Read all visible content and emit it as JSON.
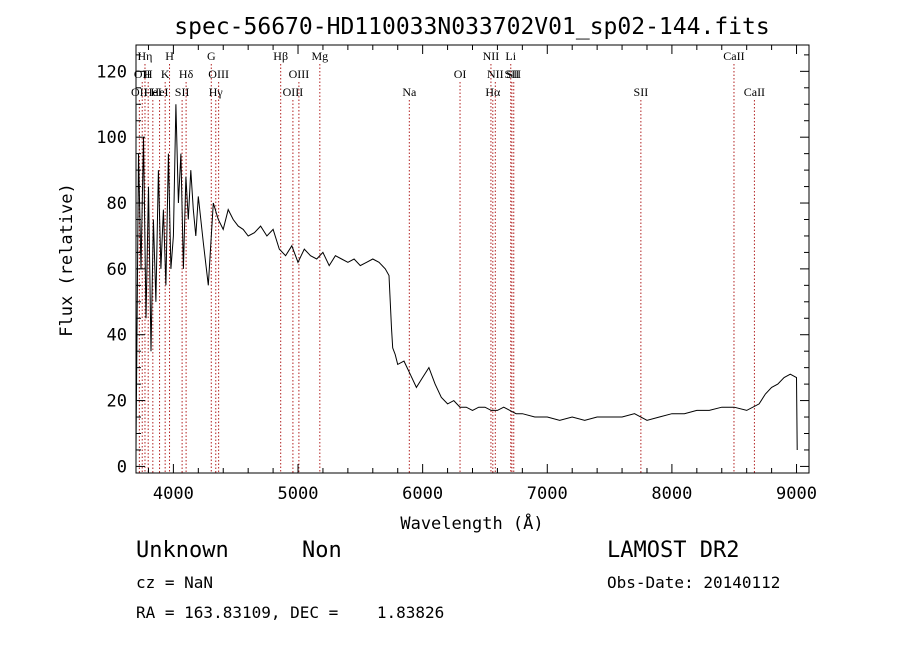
{
  "chart_data": {
    "type": "line",
    "title": "spec-56670-HD110033N033702V01_sp02-144.fits",
    "xlabel": "Wavelength (Å)",
    "ylabel": "Flux (relative)",
    "xlim": [
      3700,
      9100
    ],
    "ylim": [
      -2,
      128
    ],
    "xticks": [
      "4000",
      "5000",
      "6000",
      "7000",
      "8000",
      "9000"
    ],
    "yticks": [
      "0",
      "20",
      "40",
      "60",
      "80",
      "100",
      "120"
    ],
    "grid": false,
    "legend": "none",
    "series": [
      {
        "x": [
          3700,
          3720,
          3740,
          3760,
          3780,
          3800,
          3820,
          3840,
          3860,
          3880,
          3900,
          3920,
          3940,
          3960,
          3980,
          4000,
          4020,
          4040,
          4060,
          4080,
          4100,
          4120,
          4140,
          4160,
          4180,
          4200,
          4240,
          4280,
          4320,
          4360,
          4400,
          4440,
          4480,
          4520,
          4560,
          4600,
          4650,
          4700,
          4750,
          4800,
          4850,
          4900,
          4950,
          5000,
          5050,
          5100,
          5150,
          5200,
          5250,
          5300,
          5350,
          5400,
          5450,
          5500,
          5550,
          5600,
          5650,
          5700,
          5730,
          5750,
          5760,
          5780,
          5800,
          5850,
          5900,
          5950,
          6000,
          6050,
          6100,
          6150,
          6200,
          6250,
          6300,
          6350,
          6400,
          6450,
          6500,
          6550,
          6600,
          6650,
          6700,
          6750,
          6800,
          6900,
          7000,
          7100,
          7200,
          7300,
          7400,
          7500,
          7600,
          7700,
          7800,
          7900,
          8000,
          8100,
          8200,
          8300,
          8400,
          8500,
          8600,
          8700,
          8750,
          8800,
          8850,
          8900,
          8950,
          9000,
          9005
        ],
        "y": [
          5,
          95,
          60,
          100,
          45,
          85,
          35,
          75,
          50,
          90,
          60,
          78,
          55,
          95,
          60,
          70,
          110,
          80,
          95,
          60,
          88,
          75,
          90,
          78,
          70,
          82,
          68,
          55,
          80,
          75,
          72,
          78,
          75,
          73,
          72,
          70,
          71,
          73,
          70,
          72,
          66,
          64,
          67,
          62,
          66,
          64,
          63,
          65,
          61,
          64,
          63,
          62,
          63,
          61,
          62,
          63,
          62,
          60,
          58,
          42,
          36,
          34,
          31,
          32,
          28,
          24,
          27,
          30,
          25,
          21,
          19,
          20,
          18,
          18,
          17,
          18,
          18,
          17,
          17,
          18,
          17,
          16,
          16,
          15,
          15,
          14,
          15,
          14,
          15,
          15,
          15,
          16,
          14,
          15,
          16,
          16,
          17,
          17,
          18,
          18,
          17,
          19,
          22,
          24,
          25,
          27,
          28,
          27,
          5
        ]
      }
    ],
    "lines": [
      {
        "x": 3727,
        "row": 3,
        "label": "OII"
      },
      {
        "x": 3750,
        "row": 2,
        "label": "OII"
      },
      {
        "x": 3772,
        "row": 1,
        "label": "Hη"
      },
      {
        "x": 3798,
        "row": 2,
        "label": "H"
      },
      {
        "x": 3835,
        "row": 3,
        "label": "HeI"
      },
      {
        "x": 3889,
        "row": 3,
        "label": "HeI"
      },
      {
        "x": 3934,
        "row": 2,
        "label": "K"
      },
      {
        "x": 3969,
        "row": 1,
        "label": "H"
      },
      {
        "x": 4070,
        "row": 3,
        "label": "SII"
      },
      {
        "x": 4102,
        "row": 2,
        "label": "Hδ"
      },
      {
        "x": 4304,
        "row": 1,
        "label": "G"
      },
      {
        "x": 4340,
        "row": 3,
        "label": "Hγ"
      },
      {
        "x": 4363,
        "row": 2,
        "label": "OIII"
      },
      {
        "x": 4861,
        "row": 1,
        "label": "Hβ"
      },
      {
        "x": 4959,
        "row": 3,
        "label": "OIII"
      },
      {
        "x": 5007,
        "row": 2,
        "label": "OIII"
      },
      {
        "x": 5175,
        "row": 1,
        "label": "Mg"
      },
      {
        "x": 5893,
        "row": 3,
        "label": "Na"
      },
      {
        "x": 6300,
        "row": 2,
        "label": "OI"
      },
      {
        "x": 6548,
        "row": 1,
        "label": "NII"
      },
      {
        "x": 6563,
        "row": 3,
        "label": "Hα"
      },
      {
        "x": 6583,
        "row": 2,
        "label": "NII"
      },
      {
        "x": 6707,
        "row": 1,
        "label": "Li"
      },
      {
        "x": 6716,
        "row": 2,
        "label": "SII"
      },
      {
        "x": 6731,
        "row": 2,
        "label": "SII"
      },
      {
        "x": 7751,
        "row": 3,
        "label": "SII"
      },
      {
        "x": 8498,
        "row": 1,
        "label": "CaII"
      },
      {
        "x": 8662,
        "row": 3,
        "label": "CaII"
      }
    ]
  },
  "info": {
    "object_class": "Unknown",
    "object_subclass": "Non",
    "survey": "LAMOST DR2",
    "redshift": "cz = NaN",
    "obs_date": "Obs-Date: 20140112",
    "coordinates": "RA = 163.83109, DEC =    1.83826"
  },
  "colors": {
    "spectrum": "#000000",
    "line_marker": "#b22222",
    "background": "#ffffff"
  }
}
